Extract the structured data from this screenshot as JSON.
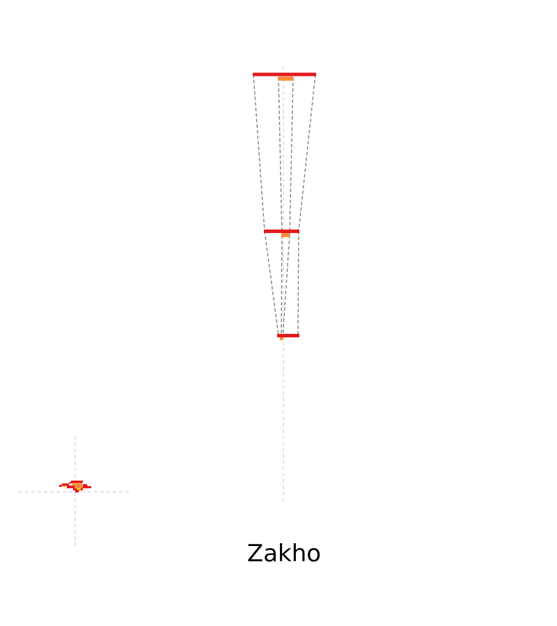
{
  "place": {
    "name": "Zakho"
  },
  "colors": {
    "outline": "#e31a1c",
    "fill_accent": "#fd8d3c",
    "connector": "#808080",
    "guide": "#d0d0d0",
    "text": "#000000",
    "background": "#ffffff"
  },
  "elements": {
    "map_icon": "map-footprint-icon",
    "slices": "extruded-slice-bars"
  }
}
